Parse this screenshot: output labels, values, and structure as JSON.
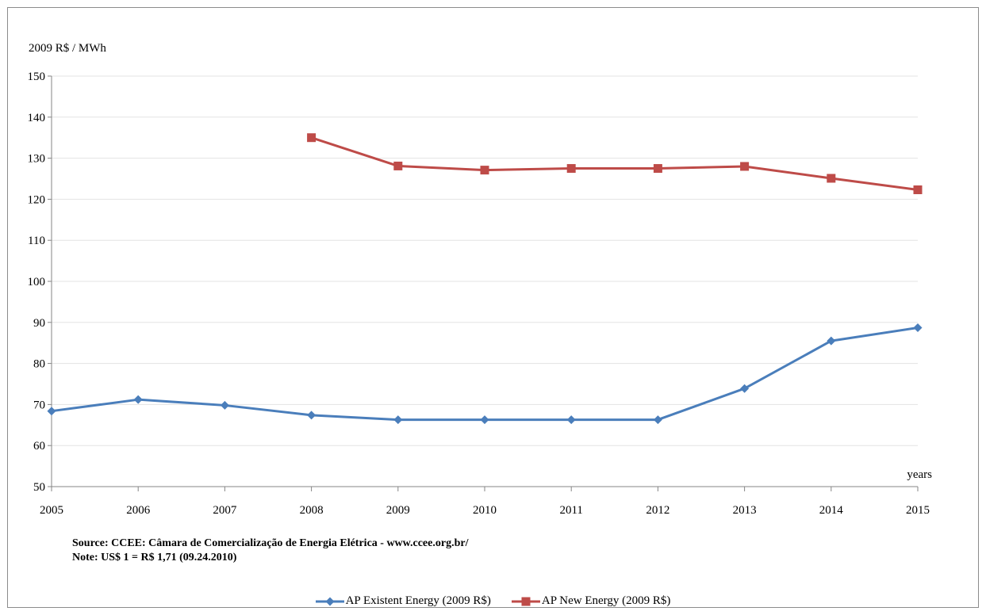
{
  "chart_data": {
    "type": "line",
    "ylabel": "2009 R$ / MWh",
    "xlabel": "years",
    "ylim": [
      50,
      150
    ],
    "yticks": [
      50,
      60,
      70,
      80,
      90,
      100,
      110,
      120,
      130,
      140,
      150
    ],
    "x": [
      "2005",
      "2006",
      "2007",
      "2008",
      "2009",
      "2010",
      "2011",
      "2012",
      "2013",
      "2014",
      "2015"
    ],
    "grid": true,
    "legend_position": "bottom",
    "series": [
      {
        "name": "AP Existent Energy (2009 R$)",
        "color": "#4a7ebb",
        "marker": "diamond",
        "values": [
          68.4,
          71.2,
          69.8,
          67.4,
          66.3,
          66.3,
          66.3,
          66.3,
          73.9,
          85.5,
          88.7
        ]
      },
      {
        "name": "AP New Energy (2009 R$)",
        "color": "#be4b48",
        "marker": "square",
        "values": [
          null,
          null,
          null,
          135.0,
          128.1,
          127.1,
          127.5,
          127.5,
          128.0,
          125.1,
          122.3
        ]
      }
    ]
  },
  "notes": {
    "source": "Source: CCEE: Câmara de Comercialização de Energia Elétrica - www.ccee.org.br/",
    "note": "Note: US$ 1 = R$ 1,71 (09.24.2010)"
  }
}
